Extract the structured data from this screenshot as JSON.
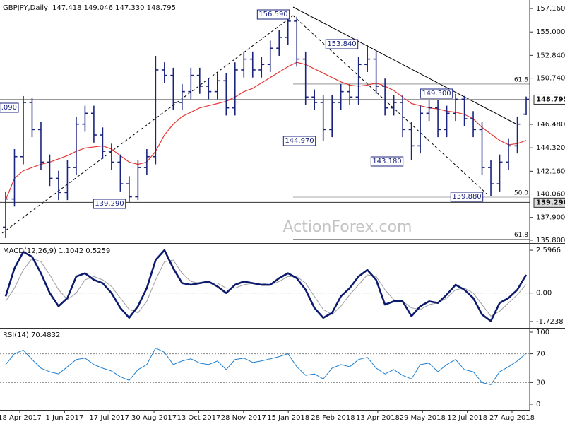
{
  "chart_data": [
    {
      "type": "ohlc",
      "title": "GBPJPY,Daily",
      "subtitle": "147.418 149.046 147.330 148.795",
      "color": "#1a237e",
      "open": [
        137.0,
        139.6,
        143.5,
        148.5,
        146.0,
        143.0,
        141.5,
        140.2,
        142.5,
        146.5,
        147.5,
        145.5,
        144.0,
        143.0,
        141.0,
        139.8,
        142.5,
        143.5,
        151.5,
        151.0,
        148.5,
        149.5,
        151.0,
        150.0,
        149.5,
        150.5,
        148.0,
        151.5,
        152.5,
        151.5,
        152.0,
        153.5,
        154.5,
        156.0,
        152.5,
        149.0,
        148.5,
        146.0,
        148.5,
        149.5,
        149.0,
        152.0,
        152.5,
        150.0,
        148.0,
        148.5,
        146.0,
        144.5,
        147.5,
        148.0,
        146.0,
        147.5,
        148.8,
        147.0,
        146.0,
        142.5,
        141.0,
        143.0,
        144.5,
        147.418
      ],
      "high": [
        140.3,
        144.2,
        149.09,
        148.9,
        146.7,
        143.7,
        142.2,
        143.2,
        147.2,
        148.2,
        148.2,
        146.2,
        144.7,
        143.7,
        141.7,
        143.2,
        144.2,
        152.8,
        152.2,
        151.7,
        150.2,
        151.7,
        151.7,
        150.7,
        151.2,
        151.2,
        152.2,
        153.2,
        153.2,
        152.7,
        154.2,
        155.2,
        156.59,
        156.4,
        153.2,
        149.7,
        149.2,
        149.2,
        150.2,
        150.2,
        152.7,
        153.84,
        153.2,
        150.7,
        149.2,
        149.2,
        146.7,
        148.2,
        148.7,
        148.7,
        148.2,
        149.3,
        149.1,
        147.7,
        146.7,
        143.2,
        143.7,
        145.2,
        147.2,
        149.046
      ],
      "low": [
        136.0,
        138.9,
        142.8,
        145.3,
        142.3,
        140.8,
        139.5,
        139.5,
        141.8,
        145.8,
        144.8,
        143.3,
        142.3,
        140.3,
        139.29,
        139.5,
        141.8,
        142.8,
        150.3,
        147.8,
        147.8,
        148.8,
        149.3,
        148.8,
        148.8,
        147.3,
        147.3,
        150.8,
        150.8,
        150.8,
        151.3,
        152.8,
        153.8,
        151.8,
        148.3,
        147.8,
        144.97,
        145.3,
        147.8,
        148.3,
        148.3,
        151.3,
        149.3,
        147.3,
        147.3,
        145.3,
        143.18,
        143.8,
        146.8,
        145.3,
        145.3,
        146.8,
        146.3,
        145.3,
        141.8,
        139.88,
        140.3,
        142.3,
        143.8,
        147.33
      ],
      "close": [
        139.6,
        143.5,
        148.5,
        146.0,
        143.0,
        141.5,
        140.2,
        142.5,
        146.5,
        147.5,
        145.5,
        144.0,
        143.0,
        141.0,
        139.8,
        142.5,
        143.5,
        151.5,
        151.0,
        148.5,
        149.5,
        151.0,
        150.0,
        149.5,
        150.5,
        148.0,
        151.5,
        152.5,
        151.5,
        152.0,
        153.5,
        154.5,
        156.0,
        152.5,
        149.0,
        148.5,
        146.0,
        148.5,
        149.5,
        149.0,
        152.0,
        152.5,
        150.0,
        148.0,
        148.5,
        146.0,
        144.5,
        147.5,
        148.0,
        146.0,
        147.5,
        148.8,
        147.0,
        146.0,
        142.5,
        141.0,
        143.0,
        144.5,
        146.5,
        148.795
      ],
      "overlay": {
        "color": "#e53935",
        "values": [
          139.5,
          141.5,
          142.2,
          142.5,
          142.8,
          143.0,
          143.3,
          143.6,
          144.0,
          144.3,
          144.4,
          144.5,
          144.2,
          143.6,
          143.0,
          142.8,
          143.0,
          144.0,
          145.5,
          146.5,
          147.2,
          147.6,
          148.0,
          148.2,
          148.4,
          148.6,
          149.0,
          149.5,
          149.8,
          150.3,
          150.8,
          151.3,
          151.8,
          152.2,
          152.0,
          151.6,
          151.2,
          150.8,
          150.4,
          150.1,
          150.0,
          150.1,
          150.3,
          150.0,
          149.6,
          149.0,
          148.4,
          148.2,
          148.0,
          147.9,
          147.7,
          147.6,
          147.4,
          147.0,
          146.2,
          145.6,
          145.0,
          144.6,
          144.7,
          145.0
        ]
      },
      "ylim": [
        135.6,
        157.62
      ],
      "yticks": [
        {
          "value": 157.16,
          "label": "157.160"
        },
        {
          "value": 155,
          "label": "155.000"
        },
        {
          "value": 152.84,
          "label": "152.840"
        },
        {
          "value": 150.74,
          "label": "150.740"
        },
        {
          "value": 146.48,
          "label": "146.480"
        },
        {
          "value": 144.32,
          "label": "144.320"
        },
        {
          "value": 142.16,
          "label": "142.160"
        },
        {
          "value": 140.06,
          "label": "140.060"
        },
        {
          "value": 137.9,
          "label": "137.900"
        },
        {
          "value": 135.8,
          "label": "135.800"
        }
      ],
      "price_markers": [
        {
          "value": 148.795,
          "label": "148.795"
        },
        {
          "value": 139.29,
          "label": "139.290"
        }
      ],
      "fib_levels": [
        {
          "value": 150.2,
          "label": "61.8"
        },
        {
          "value": 139.77,
          "label": "50.0"
        },
        {
          "value": 135.9,
          "label": "61.8"
        }
      ],
      "annotations": [
        ".090",
        "156.590",
        "153.840",
        "149.300",
        "144.970",
        "143.180",
        "139.880",
        "139.290"
      ],
      "watermark": "ActionForex.com"
    },
    {
      "type": "macd",
      "title": "MACD(12,26,9) 1.1042 0.5259",
      "series": [
        {
          "color": "#0d1b6e",
          "values": [
            -0.2,
            1.5,
            2.5,
            2.2,
            1.2,
            0.0,
            -0.8,
            -0.3,
            1.0,
            1.2,
            0.8,
            0.6,
            0.0,
            -0.9,
            -1.5,
            -0.8,
            0.3,
            2.0,
            2.6,
            1.5,
            0.6,
            0.5,
            0.6,
            0.7,
            0.4,
            0.0,
            0.5,
            0.7,
            0.6,
            0.5,
            0.5,
            0.9,
            1.2,
            0.9,
            0.2,
            -0.9,
            -1.5,
            -1.2,
            -0.2,
            0.3,
            1.0,
            1.4,
            0.8,
            -0.7,
            -0.5,
            -0.5,
            -1.4,
            -0.8,
            -0.5,
            -0.6,
            -0.1,
            0.5,
            0.2,
            -0.3,
            -1.3,
            -1.7,
            -0.6,
            -0.3,
            0.2,
            1.1042
          ]
        },
        {
          "color": "#9e9e9e",
          "values": [
            -0.5,
            0.3,
            1.4,
            2.1,
            1.9,
            1.1,
            0.2,
            -0.4,
            0.0,
            0.8,
            1.0,
            0.8,
            0.4,
            -0.3,
            -1.0,
            -1.2,
            -0.5,
            0.8,
            1.9,
            2.0,
            1.2,
            0.7,
            0.6,
            0.6,
            0.6,
            0.3,
            0.3,
            0.5,
            0.6,
            0.6,
            0.5,
            0.7,
            1.0,
            1.0,
            0.6,
            -0.2,
            -1.0,
            -1.3,
            -0.8,
            -0.1,
            0.5,
            1.1,
            1.0,
            0.2,
            -0.4,
            -0.5,
            -0.9,
            -1.0,
            -0.7,
            -0.6,
            -0.3,
            0.2,
            0.3,
            0.0,
            -0.7,
            -1.4,
            -1.1,
            -0.6,
            -0.1,
            0.5259
          ]
        }
      ],
      "ylim": [
        -2.07,
        2.9
      ],
      "yticks": [
        2.5966,
        {
          "value": 0,
          "label": "0.00"
        },
        -1.7238
      ]
    },
    {
      "type": "line",
      "title": "RSI(14) 70.4832",
      "color": "#1e7fd0",
      "values": [
        55,
        70,
        75,
        62,
        50,
        45,
        42,
        52,
        62,
        64,
        55,
        50,
        46,
        38,
        33,
        48,
        55,
        78,
        72,
        55,
        60,
        63,
        57,
        55,
        60,
        48,
        62,
        64,
        58,
        60,
        63,
        66,
        70,
        52,
        40,
        42,
        35,
        50,
        55,
        52,
        62,
        65,
        50,
        42,
        48,
        40,
        35,
        55,
        57,
        45,
        55,
        62,
        48,
        45,
        30,
        27,
        45,
        52,
        60,
        70.4832
      ],
      "ylim": [
        -5.9,
        103.9
      ],
      "yticks": [
        100,
        70,
        30,
        0
      ],
      "x_labels": [
        "18 Apr 2017",
        "1 Jun 2017",
        "17 Jul 2017",
        "30 Aug 2017",
        "13 Oct 2017",
        "28 Nov 2017",
        "15 Jan 2018",
        "28 Feb 2018",
        "13 Apr 2018",
        "29 May 2018",
        "12 Jul 2018",
        "27 Aug 2018"
      ]
    }
  ]
}
